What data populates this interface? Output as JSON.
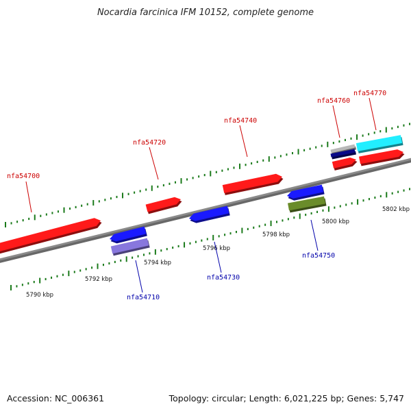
{
  "title": "Nocardia farcinica IFM 10152, complete genome",
  "footer": {
    "accession": "Accession: NC_006361",
    "summary": "Topology: circular; Length: 6,021,225 bp; Genes: 5,747"
  },
  "colors": {
    "backbone": "#8a8a8a",
    "tick": "#1a7a1a",
    "forward_label": "#cc0000",
    "reverse_label": "#0000aa",
    "red": "#ff1a1a",
    "blue": "#1a1aff",
    "lavender": "#8877dd",
    "olive": "#6a8c2a",
    "cyan": "#22eeff",
    "navy": "#0a0a88",
    "gray": "#b8b8b8"
  },
  "scale": {
    "unit": "kbp",
    "labels": [
      "5790 kbp",
      "5792 kbp",
      "5794 kbp",
      "5796 kbp",
      "5798 kbp",
      "5800 kbp",
      "5802 kbp"
    ]
  },
  "genes": [
    {
      "name": "nfa54700",
      "strand": "forward"
    },
    {
      "name": "nfa54710",
      "strand": "reverse"
    },
    {
      "name": "nfa54720",
      "strand": "forward"
    },
    {
      "name": "nfa54730",
      "strand": "reverse"
    },
    {
      "name": "nfa54740",
      "strand": "forward"
    },
    {
      "name": "nfa54750",
      "strand": "reverse"
    },
    {
      "name": "nfa54760",
      "strand": "forward"
    },
    {
      "name": "nfa54770",
      "strand": "forward"
    }
  ]
}
